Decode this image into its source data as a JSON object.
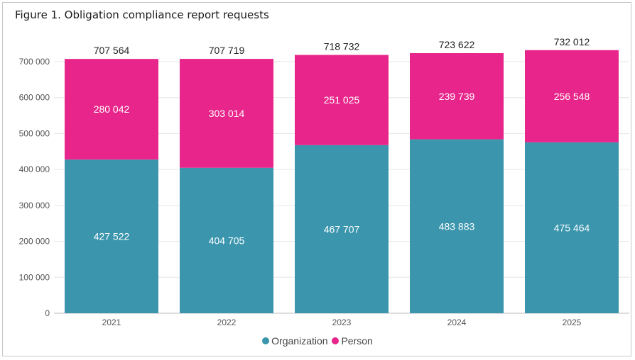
{
  "chart_data": {
    "type": "bar",
    "stacked": true,
    "title": "Figure 1. Obligation compliance report requests",
    "categories": [
      "2021",
      "2022",
      "2023",
      "2024",
      "2025"
    ],
    "series": [
      {
        "name": "Organization",
        "color": "#3a95ad",
        "values": [
          427522,
          404705,
          467707,
          483883,
          475464
        ],
        "labels": [
          "427 522",
          "404 705",
          "467 707",
          "483 883",
          "475 464"
        ]
      },
      {
        "name": "Person",
        "color": "#e8258a",
        "values": [
          280042,
          303014,
          251025,
          239739,
          256548
        ],
        "labels": [
          "280 042",
          "303 014",
          "251 025",
          "239 739",
          "256 548"
        ]
      }
    ],
    "totals": [
      707564,
      707719,
      718732,
      723622,
      732012
    ],
    "total_labels": [
      "707 564",
      "707 719",
      "718 732",
      "723 622",
      "732 012"
    ],
    "ylim": [
      0,
      700000
    ],
    "yticks": [
      0,
      100000,
      200000,
      300000,
      400000,
      500000,
      600000,
      700000
    ],
    "ytick_labels": [
      "0",
      "100 000",
      "200 000",
      "300 000",
      "400 000",
      "500 000",
      "600 000",
      "700 000"
    ],
    "xlabel": "",
    "ylabel": "",
    "grid": true,
    "legend_position": "bottom"
  }
}
